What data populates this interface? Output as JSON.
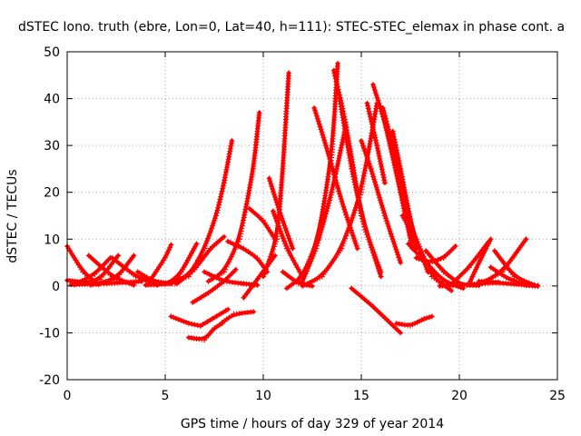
{
  "chart_data": {
    "type": "scatter",
    "title": "dSTEC Iono. truth (ebre, Lon=0, Lat=40, h=111): STEC-STEC_elemax in phase cont. a",
    "xlabel": "GPS time / hours of day 329 of year 2014",
    "ylabel": "dSTEC  / TECUs",
    "xlim": [
      0,
      25
    ],
    "ylim": [
      -20,
      50
    ],
    "xticks": [
      0,
      5,
      10,
      15,
      20,
      25
    ],
    "yticks": [
      -20,
      -10,
      0,
      10,
      20,
      30,
      40,
      50
    ],
    "grid": true,
    "marker": "+",
    "color": "#ff0000",
    "series": [
      {
        "x": [
          0.0,
          0.8,
          1.6
        ],
        "y": [
          8.5,
          3.0,
          0.3
        ]
      },
      {
        "x": [
          0.0,
          1.5,
          2.6
        ],
        "y": [
          1.2,
          0.5,
          6.5
        ]
      },
      {
        "x": [
          0.4,
          1.4,
          2.2
        ],
        "y": [
          0.3,
          2.5,
          6.0
        ]
      },
      {
        "x": [
          1.1,
          2.3,
          3.4
        ],
        "y": [
          6.5,
          2.0,
          0.2
        ]
      },
      {
        "x": [
          1.2,
          2.5,
          3.4
        ],
        "y": [
          0.2,
          1.5,
          6.5
        ]
      },
      {
        "x": [
          0.2,
          2.0,
          3.8
        ],
        "y": [
          0.3,
          0.5,
          1.0
        ]
      },
      {
        "x": [
          2.3,
          3.5,
          4.6
        ],
        "y": [
          6.0,
          2.0,
          0.2
        ]
      },
      {
        "x": [
          3.6,
          4.4,
          5.3
        ],
        "y": [
          3.0,
          1.0,
          0.5
        ]
      },
      {
        "x": [
          4.2,
          5.0,
          5.3
        ],
        "y": [
          1.0,
          6.0,
          8.8
        ]
      },
      {
        "x": [
          4.0,
          5.5,
          6.6
        ],
        "y": [
          0.2,
          0.5,
          9.0
        ]
      },
      {
        "x": [
          5.3,
          6.2,
          6.8
        ],
        "y": [
          -6.5,
          -8.0,
          -8.5
        ]
      },
      {
        "x": [
          6.8,
          7.4,
          8.2
        ],
        "y": [
          -8.5,
          -7.0,
          -5.0
        ]
      },
      {
        "x": [
          5.0,
          6.2,
          7.0,
          7.6,
          8.0,
          8.4
        ],
        "y": [
          0.5,
          2.0,
          8.0,
          15.0,
          22.0,
          31.0
        ]
      },
      {
        "x": [
          5.6,
          6.5,
          7.3,
          8.0
        ],
        "y": [
          0.5,
          3.5,
          8.0,
          10.5
        ]
      },
      {
        "x": [
          6.2,
          7.0,
          7.5,
          7.9
        ],
        "y": [
          -11.0,
          -11.5,
          -9.0,
          -8.0
        ]
      },
      {
        "x": [
          7.9,
          8.5,
          9.5
        ],
        "y": [
          -7.8,
          -6.0,
          -5.5
        ]
      },
      {
        "x": [
          6.4,
          7.2,
          8.0,
          8.6
        ],
        "y": [
          -3.5,
          -1.5,
          1.0,
          3.5
        ]
      },
      {
        "x": [
          7.0,
          8.0,
          9.0,
          9.7
        ],
        "y": [
          3.0,
          1.0,
          0.5,
          0.2
        ]
      },
      {
        "x": [
          7.2,
          8.0,
          8.8,
          9.5,
          9.8
        ],
        "y": [
          1.0,
          3.0,
          10.0,
          25.0,
          37.0
        ]
      },
      {
        "x": [
          8.2,
          9.0,
          9.7,
          10.2
        ],
        "y": [
          9.5,
          8.0,
          6.0,
          3.0
        ]
      },
      {
        "x": [
          9.0,
          9.8,
          10.6
        ],
        "y": [
          -2.5,
          2.0,
          6.5
        ]
      },
      {
        "x": [
          9.3,
          10.0,
          10.6
        ],
        "y": [
          16.5,
          14.0,
          10.0
        ]
      },
      {
        "x": [
          10.0,
          10.7,
          11.0,
          11.3
        ],
        "y": [
          2.0,
          10.0,
          25.0,
          45.5
        ]
      },
      {
        "x": [
          10.3,
          10.9,
          11.5
        ],
        "y": [
          23.0,
          15.0,
          8.0
        ]
      },
      {
        "x": [
          10.5,
          11.2,
          12.0
        ],
        "y": [
          16.0,
          8.0,
          2.0
        ]
      },
      {
        "x": [
          11.0,
          11.8,
          12.5
        ],
        "y": [
          3.0,
          0.5,
          0.0
        ]
      },
      {
        "x": [
          11.2,
          12.0,
          12.8,
          13.5,
          13.8
        ],
        "y": [
          -0.5,
          2.0,
          10.0,
          28.0,
          47.5
        ]
      },
      {
        "x": [
          12.0,
          12.7,
          13.5,
          14.2
        ],
        "y": [
          1.0,
          8.0,
          20.0,
          34.0
        ]
      },
      {
        "x": [
          12.6,
          13.2,
          14.0,
          14.8
        ],
        "y": [
          38.0,
          30.0,
          18.0,
          8.0
        ]
      },
      {
        "x": [
          13.6,
          14.2,
          15.0,
          16.0
        ],
        "y": [
          46.0,
          35.0,
          15.0,
          2.0
        ]
      },
      {
        "x": [
          13.9,
          14.5,
          15.2,
          16.0
        ],
        "y": [
          40.0,
          25.0,
          12.0,
          3.0
        ]
      },
      {
        "x": [
          12.0,
          13.0,
          14.0,
          15.0,
          15.8
        ],
        "y": [
          0.0,
          2.0,
          8.0,
          20.0,
          39.0
        ]
      },
      {
        "x": [
          15.0,
          15.5,
          16.2,
          17.0
        ],
        "y": [
          31.0,
          25.0,
          15.0,
          5.0
        ]
      },
      {
        "x": [
          15.3,
          15.8,
          16.2
        ],
        "y": [
          39.0,
          30.0,
          22.0
        ]
      },
      {
        "x": [
          15.6,
          16.2,
          17.0,
          17.6
        ],
        "y": [
          43.0,
          35.0,
          20.0,
          8.0
        ]
      },
      {
        "x": [
          16.1,
          16.6,
          17.2,
          17.8
        ],
        "y": [
          38.0,
          30.0,
          18.0,
          8.0
        ]
      },
      {
        "x": [
          16.6,
          17.0,
          17.6,
          18.4
        ],
        "y": [
          33.0,
          25.0,
          12.0,
          3.0
        ]
      },
      {
        "x": [
          14.5,
          15.5,
          16.5,
          17.0
        ],
        "y": [
          -0.5,
          -4.0,
          -8.0,
          -10.0
        ]
      },
      {
        "x": [
          16.8,
          17.5,
          18.2,
          18.6
        ],
        "y": [
          -8.0,
          -8.5,
          -7.0,
          -6.5
        ]
      },
      {
        "x": [
          17.1,
          17.8,
          18.6,
          19.6
        ],
        "y": [
          15.0,
          10.0,
          2.0,
          -1.0
        ]
      },
      {
        "x": [
          17.4,
          18.3,
          19.2,
          20.2
        ],
        "y": [
          9.0,
          5.0,
          1.0,
          -0.5
        ]
      },
      {
        "x": [
          17.8,
          18.5,
          19.2,
          19.8
        ],
        "y": [
          6.0,
          5.0,
          6.0,
          8.5
        ]
      },
      {
        "x": [
          18.3,
          19.2,
          20.1,
          21.0
        ],
        "y": [
          7.5,
          3.0,
          0.2,
          0.1
        ]
      },
      {
        "x": [
          19.5,
          20.5,
          21.5
        ],
        "y": [
          0.0,
          4.0,
          9.5
        ]
      },
      {
        "x": [
          20.5,
          21.0,
          21.6
        ],
        "y": [
          0.5,
          5.0,
          10.0
        ]
      },
      {
        "x": [
          19.0,
          20.5,
          22.0
        ],
        "y": [
          0.0,
          0.3,
          0.8
        ]
      },
      {
        "x": [
          21.0,
          22.2,
          23.4
        ],
        "y": [
          0.3,
          3.0,
          10.0
        ]
      },
      {
        "x": [
          21.8,
          22.8,
          23.8,
          24.0
        ],
        "y": [
          7.5,
          2.0,
          0.2,
          0.0
        ]
      },
      {
        "x": [
          21.6,
          22.5,
          23.4,
          24.0
        ],
        "y": [
          4.0,
          1.5,
          0.2,
          0.1
        ]
      },
      {
        "x": [
          21.0,
          22.5,
          24.0
        ],
        "y": [
          1.0,
          0.5,
          0.0
        ]
      }
    ]
  }
}
